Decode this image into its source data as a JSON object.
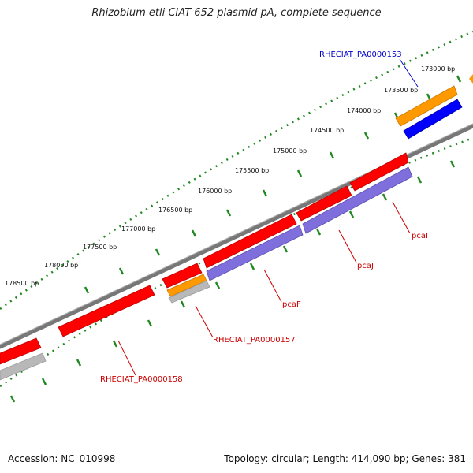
{
  "title": "Rhizobium etli CIAT 652 plasmid pA, complete sequence",
  "footer": {
    "accession": "Accession: NC_010998",
    "topology": "Topology: circular; Length: 414,090 bp; Genes: 381"
  },
  "ticks": [
    {
      "label": "173000 bp"
    },
    {
      "label": "173500 bp"
    },
    {
      "label": "174000 bp"
    },
    {
      "label": "174500 bp"
    },
    {
      "label": "175000 bp"
    },
    {
      "label": "175500 bp"
    },
    {
      "label": "176000 bp"
    },
    {
      "label": "176500 bp"
    },
    {
      "label": "177000 bp"
    },
    {
      "label": "177500 bp"
    },
    {
      "label": "178000 bp"
    },
    {
      "label": "178500 bp"
    }
  ],
  "gene_labels": [
    {
      "text": "RHECIAT_PA0000153",
      "color": "#0000cc"
    },
    {
      "text": "pcaI",
      "color": "#cc0000"
    },
    {
      "text": "pcaJ",
      "color": "#cc0000"
    },
    {
      "text": "pcaF",
      "color": "#cc0000"
    },
    {
      "text": "RHECIAT_PA0000157",
      "color": "#cc0000"
    },
    {
      "text": "RHECIAT_PA0000158",
      "color": "#cc0000"
    }
  ],
  "colors": {
    "cds": "#ff0000",
    "gene_orange": "#ff9900",
    "gene_blue": "#0000ff",
    "gene_purple": "#7f6fdd",
    "gene_gray": "#b8b8b8",
    "backbone": "#777777",
    "ruler": "#228822"
  }
}
